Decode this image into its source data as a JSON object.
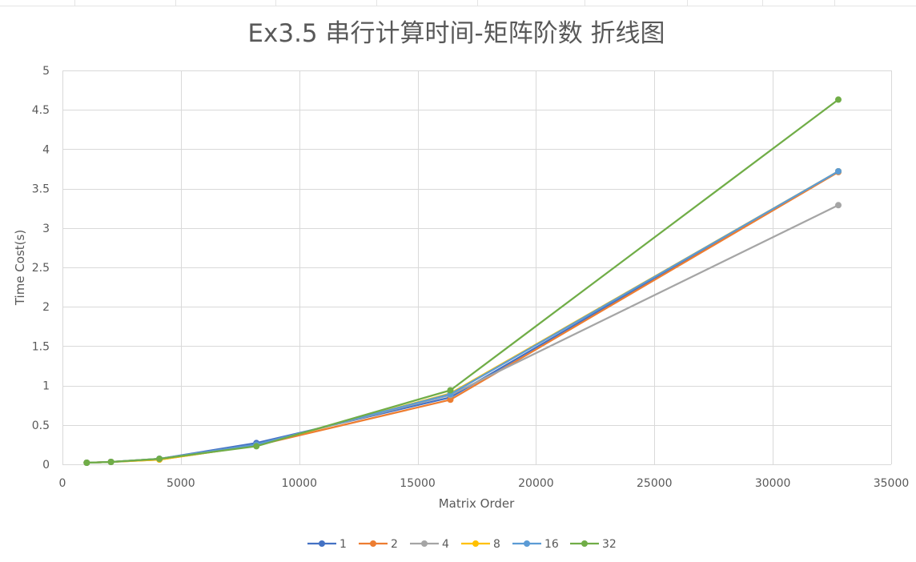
{
  "chart_data": {
    "type": "line",
    "title": "Ex3.5 串行计算时间-矩阵阶数 折线图",
    "xlabel": "Matrix Order",
    "ylabel": "Time Cost(s)",
    "xlim": [
      0,
      35000
    ],
    "ylim": [
      0,
      5
    ],
    "x_ticks": [
      "0",
      "5000",
      "10000",
      "15000",
      "20000",
      "25000",
      "30000",
      "35000"
    ],
    "y_ticks": [
      "0",
      "0.5",
      "1",
      "1.5",
      "2",
      "2.5",
      "3",
      "3.5",
      "4",
      "4.5",
      "5"
    ],
    "grid": true,
    "legend_position": "bottom",
    "series": [
      {
        "name": "1",
        "color": "#4472c4",
        "points": [
          [
            1024,
            0.02
          ],
          [
            2048,
            0.03
          ],
          [
            4096,
            0.07
          ],
          [
            8192,
            0.27
          ],
          [
            16384,
            0.85
          ],
          [
            32768,
            3.72
          ]
        ]
      },
      {
        "name": "2",
        "color": "#ed7d31",
        "points": [
          [
            1024,
            0.02
          ],
          [
            2048,
            0.03
          ],
          [
            4096,
            0.06
          ],
          [
            8192,
            0.24
          ],
          [
            16384,
            0.82
          ],
          [
            32768,
            3.71
          ]
        ]
      },
      {
        "name": "4",
        "color": "#a5a5a5",
        "points": [
          [
            1024,
            0.02
          ],
          [
            2048,
            0.03
          ],
          [
            4096,
            0.07
          ],
          [
            8192,
            0.25
          ],
          [
            16384,
            0.88
          ],
          [
            32768,
            3.29
          ]
        ]
      },
      {
        "name": "8",
        "color": "#ffc000",
        "points": [
          [
            1024,
            0.02
          ],
          [
            2048,
            0.03
          ],
          [
            4096,
            0.06
          ],
          [
            8192,
            0.24
          ],
          [
            16384,
            0.9
          ],
          [
            32768,
            3.72
          ]
        ]
      },
      {
        "name": "16",
        "color": "#5b9bd5",
        "points": [
          [
            1024,
            0.02
          ],
          [
            2048,
            0.03
          ],
          [
            4096,
            0.07
          ],
          [
            8192,
            0.25
          ],
          [
            16384,
            0.89
          ],
          [
            32768,
            3.72
          ]
        ]
      },
      {
        "name": "32",
        "color": "#70ad47",
        "points": [
          [
            1024,
            0.02
          ],
          [
            2048,
            0.03
          ],
          [
            4096,
            0.07
          ],
          [
            8192,
            0.23
          ],
          [
            16384,
            0.94
          ],
          [
            32768,
            4.63
          ]
        ]
      }
    ]
  }
}
